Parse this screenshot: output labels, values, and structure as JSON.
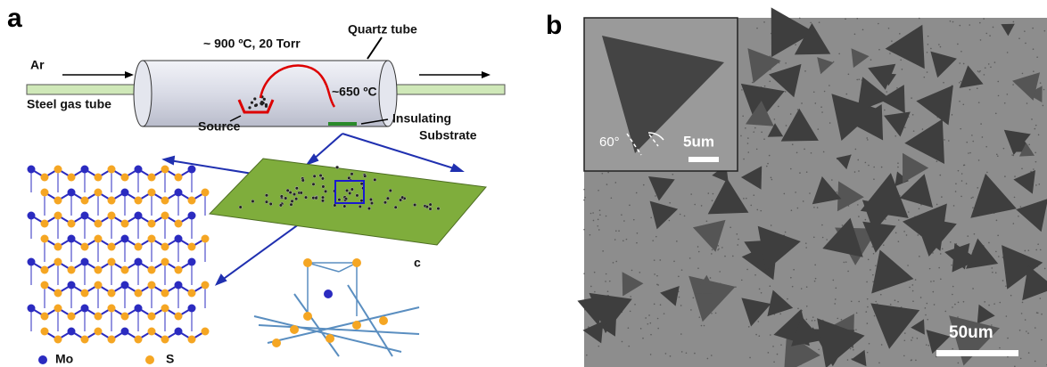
{
  "panel_a": {
    "label": "a",
    "conditions": "~ 900 ºC, 20 Torr",
    "tube_label": "Quartz tube",
    "gas": "Ar",
    "gas_tube": "Steel gas tube",
    "temperature": "~650 ºC",
    "source": "Source",
    "substrate": [
      "Insulating",
      "Substrate"
    ],
    "structure_label": "c",
    "legend": [
      "Mo",
      "S"
    ]
  },
  "panel_b": {
    "label": "b",
    "angle": "60°",
    "inset_scale": "5um",
    "scale": "50um"
  }
}
